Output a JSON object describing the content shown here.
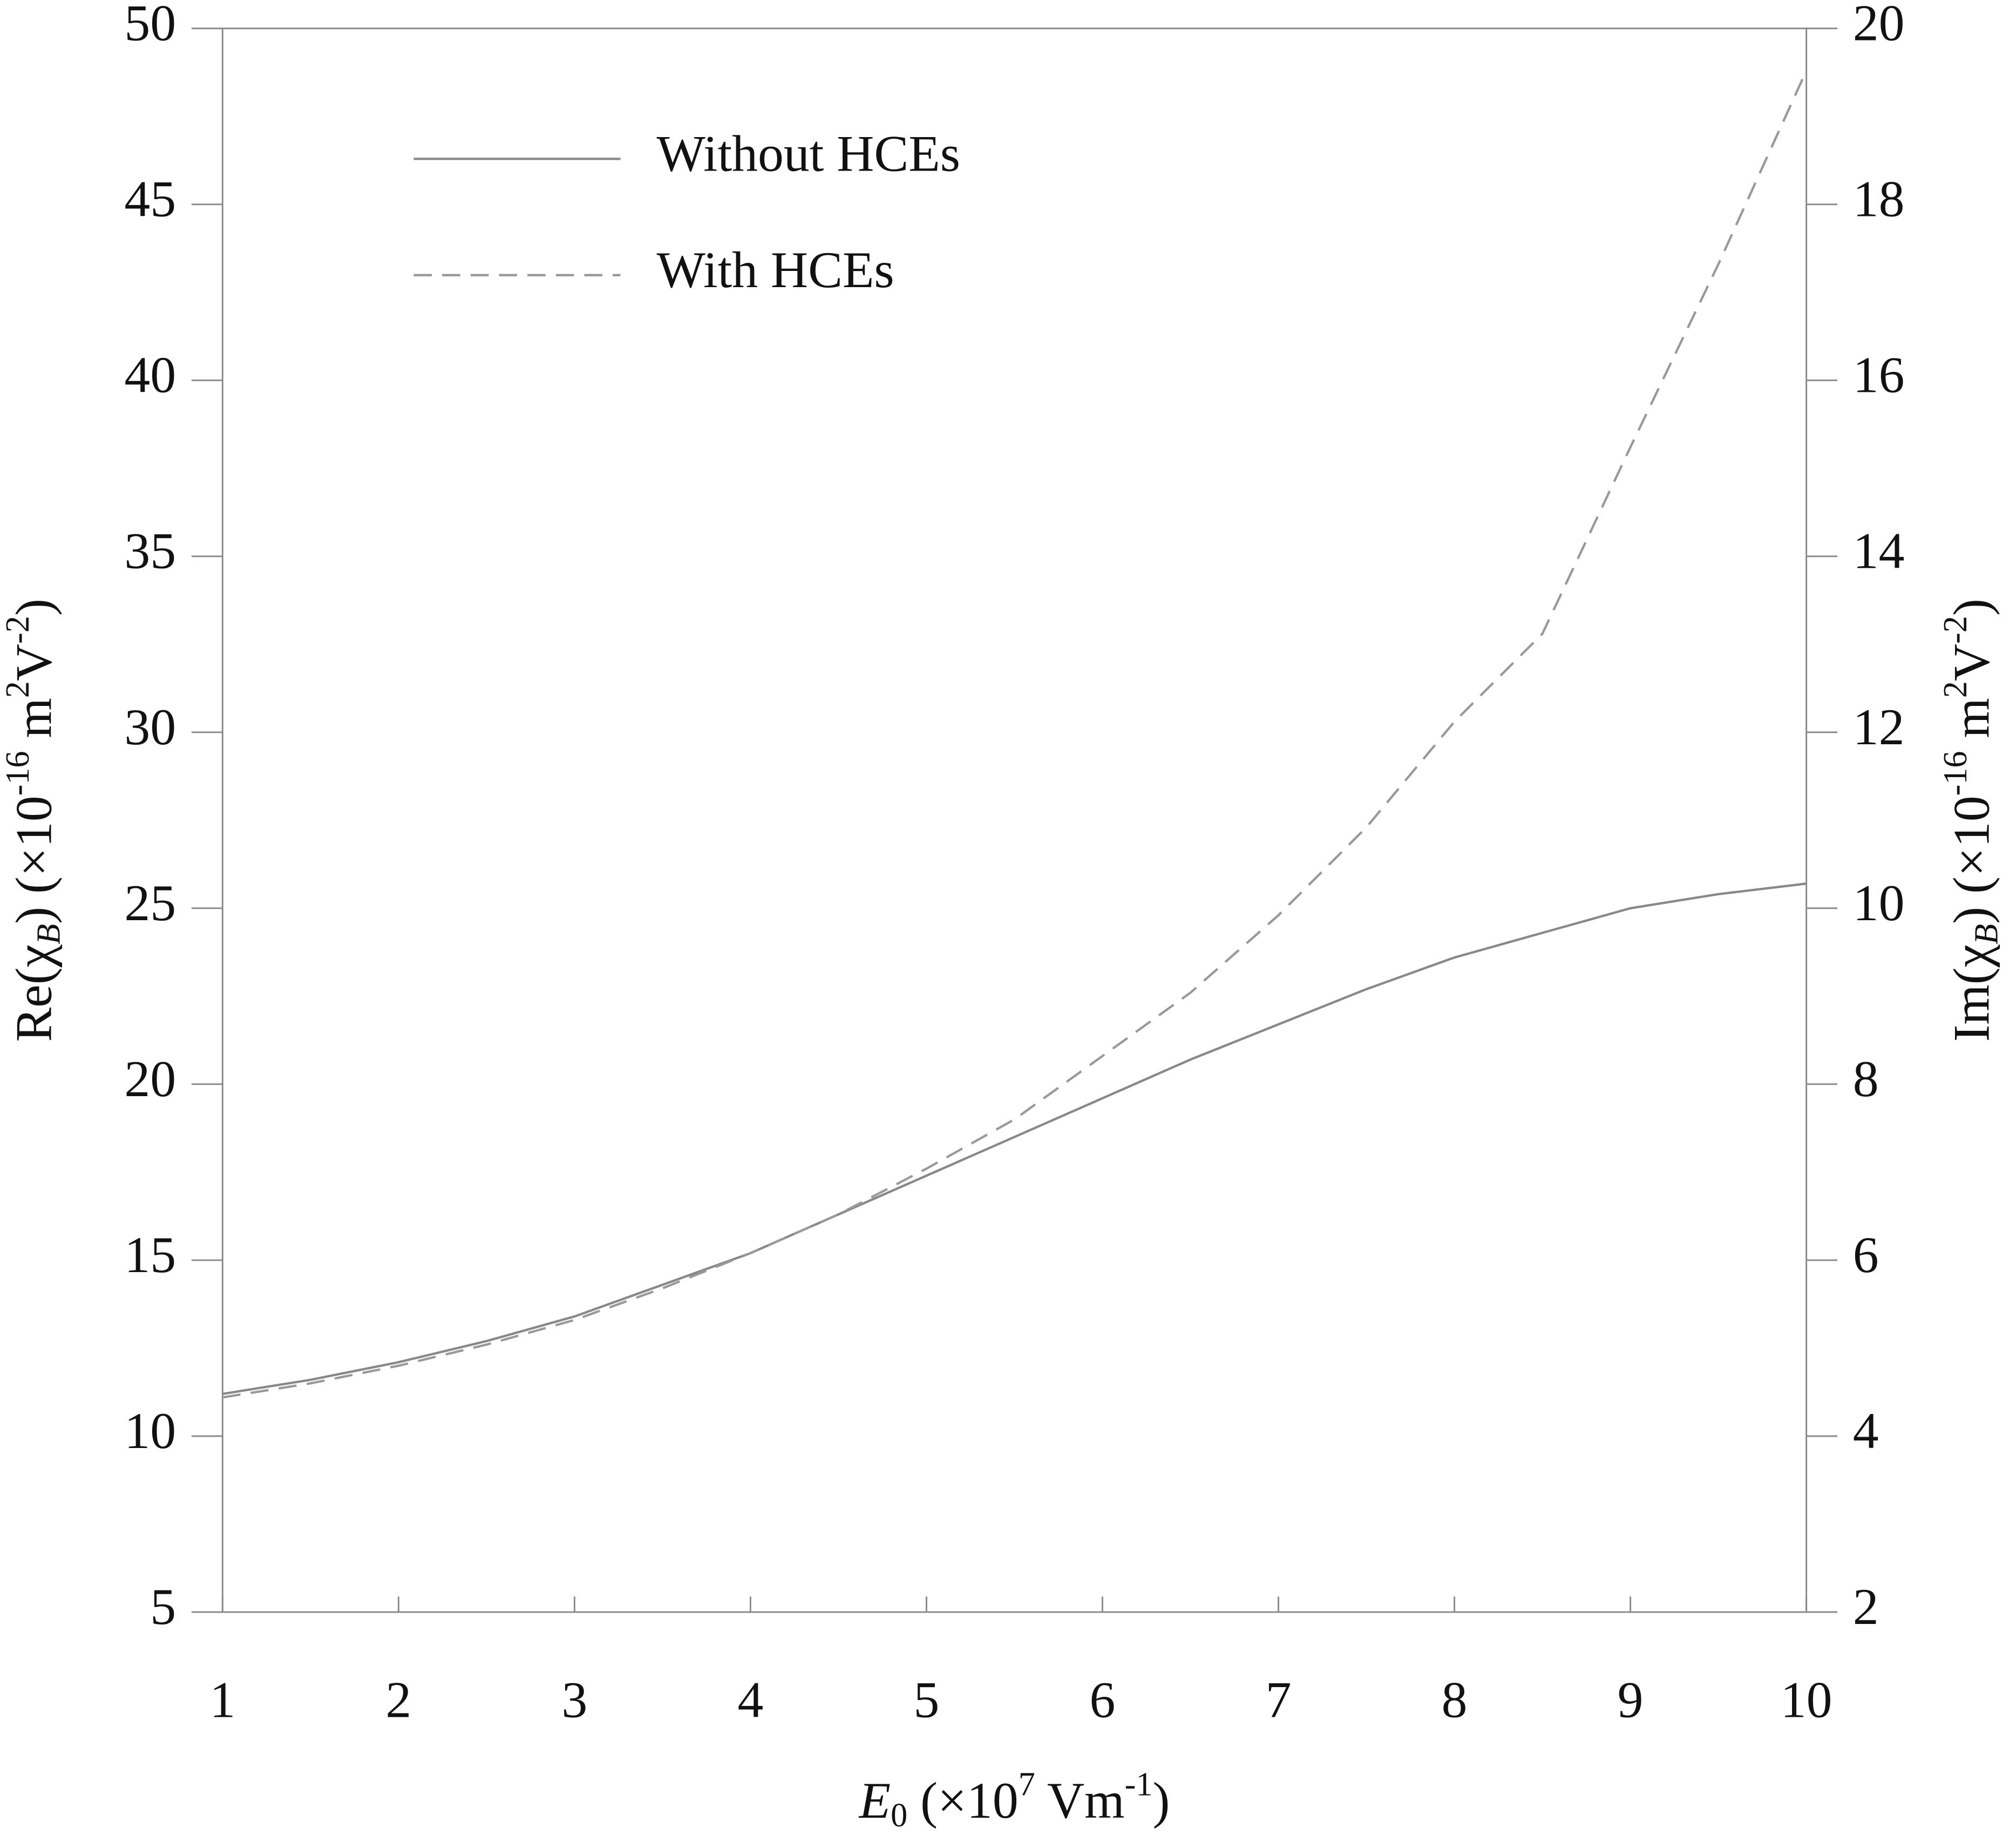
{
  "chart_data": {
    "type": "line",
    "xlabel": [
      {
        "text": "E",
        "style": "italic"
      },
      {
        "text": "0",
        "shift": "sub"
      },
      {
        "text": " (×10"
      },
      {
        "text": "7",
        "shift": "sup"
      },
      {
        "text": " Vm"
      },
      {
        "text": "-1",
        "shift": "sup"
      },
      {
        "text": ")"
      }
    ],
    "ylabel": [
      {
        "text": "Re(χ"
      },
      {
        "text": "B",
        "shift": "sub",
        "style": "italic"
      },
      {
        "text": ") (×10"
      },
      {
        "text": "-16",
        "shift": "sup"
      },
      {
        "text": " m"
      },
      {
        "text": "2",
        "shift": "sup"
      },
      {
        "text": "V"
      },
      {
        "text": "-2",
        "shift": "sup"
      },
      {
        "text": ")"
      }
    ],
    "y2label": [
      {
        "text": "Im(χ"
      },
      {
        "text": "B",
        "shift": "sub",
        "style": "italic"
      },
      {
        "text": ") (×10"
      },
      {
        "text": "-16",
        "shift": "sup"
      },
      {
        "text": " m"
      },
      {
        "text": "2",
        "shift": "sup"
      },
      {
        "text": "V"
      },
      {
        "text": "-2",
        "shift": "sup"
      },
      {
        "text": ")"
      }
    ],
    "x": [
      1,
      1.5,
      2,
      2.5,
      3,
      3.5,
      4,
      4.5,
      5,
      5.5,
      6,
      6.5,
      7,
      7.5,
      8,
      8.5,
      9,
      9.5,
      10
    ],
    "series": [
      {
        "name": "Without HCEs",
        "color": "#888888",
        "dash": false,
        "values": [
          11.2,
          11.6,
          12.1,
          12.7,
          13.4,
          14.3,
          15.2,
          16.3,
          17.4,
          18.5,
          19.6,
          20.7,
          21.7,
          22.7,
          23.6,
          24.3,
          25.0,
          25.4,
          25.7
        ]
      },
      {
        "name": "With HCEs",
        "color": "#999999",
        "dash": true,
        "values": [
          11.1,
          11.5,
          12.0,
          12.6,
          13.3,
          14.2,
          15.2,
          16.3,
          17.6,
          19.0,
          20.8,
          22.6,
          24.8,
          27.3,
          30.3,
          32.8,
          38.1,
          43.3,
          48.8
        ]
      }
    ],
    "xlim": [
      1,
      10
    ],
    "xticks": [
      1,
      2,
      3,
      4,
      5,
      6,
      7,
      8,
      9,
      10
    ],
    "ylim": [
      5,
      50
    ],
    "yticks": [
      5,
      10,
      15,
      20,
      25,
      30,
      35,
      40,
      45,
      50
    ],
    "y2lim": [
      2,
      20
    ],
    "y2ticks": [
      2,
      4,
      6,
      8,
      10,
      12,
      14,
      16,
      18,
      20
    ],
    "legend": "top-left",
    "grid": false
  }
}
